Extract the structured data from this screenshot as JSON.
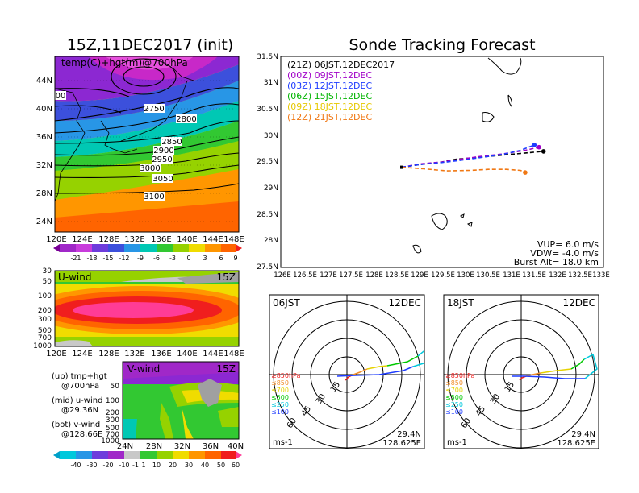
{
  "titles": {
    "left": "15Z,11DEC2017 (init)",
    "right": "Sonde Tracking Forecast"
  },
  "map_panel": {
    "field_label": "temp(C)+hgt(m)@700hPa",
    "lat_labels": [
      "44N",
      "40N",
      "36N",
      "32N",
      "28N",
      "24N"
    ],
    "lon_labels": [
      "120E",
      "124E",
      "128E",
      "132E",
      "136E",
      "140E",
      "144E",
      "148E"
    ],
    "contour_labels": [
      "2750",
      "2800",
      "2850",
      "2900",
      "2950",
      "3000",
      "3050",
      "3100",
      "00"
    ],
    "colorbar": [
      "-21",
      "-18",
      "-15",
      "-12",
      "-9",
      "-6",
      "-3",
      "0",
      "3",
      "6",
      "9"
    ]
  },
  "u_panel": {
    "title": "U-wind",
    "time": "15Z",
    "levels": [
      "30",
      "50",
      "100",
      "200",
      "300",
      "500",
      "700",
      "1000"
    ],
    "lon_labels": [
      "120E",
      "124E",
      "128E",
      "132E",
      "136E",
      "140E",
      "144E",
      "148E"
    ]
  },
  "v_panel": {
    "title": "V-wind",
    "time": "15Z",
    "levels": [
      "50",
      "100",
      "200",
      "300",
      "500",
      "700",
      "1000"
    ],
    "lat_labels": [
      "24N",
      "28N",
      "32N",
      "36N",
      "40N"
    ],
    "colorbar": [
      "-40",
      "-30",
      "-20",
      "-10",
      "-1",
      "1",
      "10",
      "20",
      "30",
      "40",
      "50",
      "60"
    ]
  },
  "legend_notes": {
    "line1a": "(up) tmp+hgt",
    "line1b": "@700hPa",
    "line2a": "(mid) u-wind",
    "line2b": "@29.36N",
    "line3a": "(bot) v-wind",
    "line3b": "@128.66E"
  },
  "track_panel": {
    "lat_labels": [
      "31.5N",
      "31N",
      "30.5N",
      "30N",
      "29.5N",
      "29N",
      "28.5N",
      "28N",
      "27.5N"
    ],
    "lon_labels": [
      "126E",
      "126.5E",
      "127E",
      "127.5E",
      "128E",
      "128.5E",
      "129E",
      "129.5E",
      "130E",
      "130.5E",
      "131E",
      "131.5E",
      "132E",
      "132.5E",
      "133E"
    ],
    "legend": [
      {
        "text": "(21Z)  06JST,12DEC2017",
        "color": "#000000"
      },
      {
        "text": "(00Z)  09JST,12DEC",
        "color": "#a000c8"
      },
      {
        "text": "(03Z)  12JST,12DEC",
        "color": "#1e3cff"
      },
      {
        "text": "(06Z)  15JST,12DEC",
        "color": "#00b400"
      },
      {
        "text": "(09Z)  18JST,12DEC",
        "color": "#e6c800"
      },
      {
        "text": "(12Z)  21JST,12DEC",
        "color": "#f07814"
      }
    ],
    "params": {
      "vup": "VUP=  6.0  m/s",
      "vdw": "VDW=  -4.0  m/s",
      "burst": "Burst Alt=  18.0  km"
    }
  },
  "hodographs": [
    {
      "time": "06JST",
      "date": "12DEC",
      "lat": "29.4N",
      "lon": "128.625E",
      "unit": "ms-1",
      "rings": [
        "15",
        "30",
        "45",
        "60"
      ]
    },
    {
      "time": "18JST",
      "date": "12DEC",
      "lat": "29.4N",
      "lon": "128.625E",
      "unit": "ms-1",
      "rings": [
        "15",
        "30",
        "45",
        "60"
      ]
    }
  ],
  "hodo_levels": [
    {
      "text": "≥850hPa",
      "color": "#f01e1e"
    },
    {
      "text": "≤850",
      "color": "#f08c28"
    },
    {
      "text": "≤700",
      "color": "#e6d200"
    },
    {
      "text": "≤500",
      "color": "#00c800"
    },
    {
      "text": "≤250",
      "color": "#00c8dc"
    },
    {
      "text": "≤100",
      "color": "#1e3cff"
    }
  ],
  "chart_data": {
    "type": "line",
    "title": "Sonde Tracking Forecast",
    "xlim": [
      126,
      133
    ],
    "ylim": [
      27.5,
      31.5
    ],
    "launch": {
      "lon": 128.625,
      "lat": 29.4
    },
    "series": [
      {
        "name": "(21Z)  06JST,12DEC2017",
        "color": "#000000",
        "x": [
          128.625,
          129.0,
          129.5,
          129.8,
          130.2,
          130.7,
          131.2,
          131.7
        ],
        "y": [
          29.4,
          29.45,
          29.5,
          29.55,
          29.58,
          29.62,
          29.66,
          29.7
        ]
      },
      {
        "name": "(00Z)  09JST,12DEC",
        "color": "#a000c8",
        "x": [
          128.625,
          129.0,
          129.5,
          129.9,
          130.3,
          130.8,
          131.3,
          131.6
        ],
        "y": [
          29.4,
          29.46,
          29.5,
          29.55,
          29.6,
          29.65,
          29.72,
          29.78
        ]
      },
      {
        "name": "(03Z)  12JST,12DEC",
        "color": "#1e3cff",
        "x": [
          128.625,
          129.0,
          129.5,
          129.9,
          130.3,
          130.8,
          131.2,
          131.5
        ],
        "y": [
          29.4,
          29.45,
          29.49,
          29.53,
          29.58,
          29.64,
          29.72,
          29.82
        ]
      },
      {
        "name": "(12Z)  21JST,12DEC",
        "color": "#f07814",
        "x": [
          128.625,
          129.1,
          129.6,
          130.1,
          130.5,
          130.9,
          131.2,
          131.3
        ],
        "y": [
          29.4,
          29.37,
          29.33,
          29.34,
          29.36,
          29.36,
          29.34,
          29.3
        ]
      }
    ]
  }
}
